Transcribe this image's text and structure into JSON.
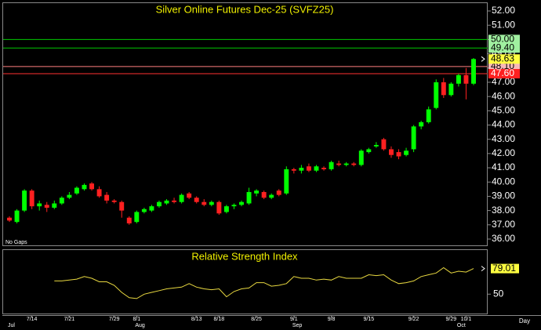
{
  "chart_data": [
    {
      "type": "candlestick",
      "title": "Silver Online Futures Dec-25 (SVFZ25)",
      "note": "No Gaps",
      "x_label": "Day",
      "categories": [
        null,
        null,
        null,
        "7/14",
        null,
        null,
        null,
        null,
        "7/21",
        null,
        null,
        null,
        null,
        null,
        "7/29",
        null,
        null,
        "8/1",
        null,
        null,
        null,
        null,
        null,
        null,
        null,
        "8/13",
        null,
        null,
        "8/18",
        null,
        null,
        null,
        null,
        "8/25",
        null,
        null,
        null,
        null,
        "9/1",
        null,
        null,
        null,
        null,
        "9/8",
        null,
        null,
        null,
        null,
        "9/15",
        null,
        null,
        null,
        null,
        null,
        "9/22",
        null,
        null,
        null,
        null,
        "9/29",
        null,
        "10/1",
        null,
        null
      ],
      "months": [
        "Jul",
        null,
        null,
        null,
        null,
        null,
        null,
        null,
        null,
        null,
        null,
        null,
        null,
        null,
        null,
        null,
        null,
        "Aug",
        null,
        null,
        null,
        null,
        null,
        null,
        null,
        null,
        null,
        null,
        null,
        null,
        null,
        null,
        null,
        null,
        null,
        null,
        null,
        null,
        "Sep",
        null,
        null,
        null,
        null,
        null,
        null,
        null,
        null,
        null,
        null,
        null,
        null,
        null,
        null,
        null,
        null,
        null,
        null,
        null,
        null,
        null,
        "Oct",
        null,
        null
      ],
      "open": [
        37.5,
        37.2,
        38.0,
        39.4,
        38.3,
        38.4,
        38.2,
        38.5,
        38.9,
        39.2,
        39.5,
        39.9,
        39.5,
        39.1,
        38.7,
        38.6,
        37.5,
        37.2,
        37.9,
        38.0,
        38.3,
        38.5,
        38.7,
        38.6,
        39.2,
        38.9,
        38.6,
        38.4,
        38.6,
        37.9,
        38.3,
        38.4,
        38.5,
        39.2,
        39.3,
        38.9,
        39.4,
        39.2,
        40.9,
        40.8,
        41.1,
        40.8,
        41.0,
        40.9,
        41.3,
        41.2,
        41.3,
        41.2,
        42.1,
        42.5,
        43.0,
        42.3,
        42.1,
        41.9,
        42.3,
        43.9,
        44.2,
        45.2,
        47.0,
        46.1,
        46.9,
        47.5,
        46.9
      ],
      "high": [
        37.6,
        38.1,
        39.5,
        39.5,
        38.7,
        38.6,
        38.7,
        39.0,
        39.3,
        39.7,
        39.9,
        40.0,
        39.7,
        39.3,
        38.8,
        38.7,
        37.6,
        38.0,
        38.2,
        38.4,
        38.7,
        38.8,
        38.9,
        39.2,
        39.3,
        39.0,
        38.8,
        38.7,
        38.7,
        38.4,
        38.5,
        38.7,
        39.6,
        39.5,
        39.4,
        39.2,
        39.5,
        41.1,
        41.0,
        41.2,
        41.3,
        41.2,
        41.1,
        41.5,
        41.5,
        41.4,
        41.4,
        42.3,
        42.4,
        42.8,
        43.1,
        42.5,
        42.3,
        42.4,
        44.0,
        44.3,
        45.3,
        47.2,
        47.3,
        47.0,
        47.6,
        48.0,
        48.7
      ],
      "low": [
        37.2,
        37.1,
        37.9,
        38.1,
        38.0,
        37.9,
        38.1,
        38.4,
        38.8,
        39.1,
        39.4,
        39.4,
        38.9,
        38.5,
        38.5,
        37.5,
        37.0,
        37.1,
        37.8,
        37.9,
        38.2,
        38.4,
        38.5,
        38.5,
        38.8,
        38.5,
        38.3,
        38.3,
        37.7,
        37.8,
        38.1,
        38.3,
        38.4,
        39.0,
        38.8,
        38.8,
        39.0,
        39.1,
        40.6,
        40.6,
        40.7,
        40.7,
        40.8,
        40.8,
        41.1,
        41.1,
        41.1,
        41.1,
        42.0,
        42.4,
        42.2,
        41.7,
        41.6,
        41.8,
        42.1,
        43.7,
        44.1,
        45.1,
        45.9,
        46.0,
        46.7,
        45.8,
        46.8
      ],
      "close": [
        37.3,
        38.0,
        39.4,
        38.3,
        38.5,
        38.2,
        38.5,
        38.9,
        39.1,
        39.6,
        39.8,
        39.5,
        39.0,
        38.7,
        38.6,
        38.0,
        37.1,
        37.9,
        38.1,
        38.3,
        38.6,
        38.7,
        38.6,
        39.1,
        38.9,
        38.6,
        38.4,
        38.6,
        37.8,
        38.3,
        38.4,
        38.6,
        39.3,
        39.4,
        38.9,
        39.1,
        39.1,
        40.9,
        40.8,
        41.0,
        40.8,
        41.1,
        40.9,
        41.4,
        41.2,
        41.3,
        41.2,
        42.2,
        42.3,
        42.6,
        42.3,
        41.9,
        41.8,
        42.2,
        43.9,
        44.2,
        45.1,
        47.0,
        46.1,
        46.9,
        47.5,
        46.9,
        48.63
      ],
      "up_color": "#00ff00",
      "down_color": "#ff2020",
      "ylim": [
        35.56,
        52.55
      ],
      "yticks": [
        {
          "value": 36,
          "label": "36.00"
        },
        {
          "value": 37,
          "label": "37.00"
        },
        {
          "value": 38,
          "label": "38.00"
        },
        {
          "value": 39,
          "label": "39.00"
        },
        {
          "value": 40,
          "label": "40.00"
        },
        {
          "value": 41,
          "label": "41.00"
        },
        {
          "value": 42,
          "label": "42.00"
        },
        {
          "value": 43,
          "label": "43.00"
        },
        {
          "value": 44,
          "label": "44.00"
        },
        {
          "value": 45,
          "label": "45.00"
        },
        {
          "value": 46,
          "label": "46.00"
        },
        {
          "value": 47,
          "label": "47.00"
        },
        {
          "value": 48,
          "label": "48.00"
        },
        {
          "value": 49,
          "label": "49.00"
        },
        {
          "value": 50,
          "label": "50.00"
        },
        {
          "value": 51,
          "label": "51.00"
        },
        {
          "value": 52,
          "label": "52.00"
        }
      ],
      "levels": [
        {
          "value": 50,
          "label": "50.00",
          "color": "#00c800",
          "bg": "#a0f0a0",
          "text_color": "#000"
        },
        {
          "value": 49.4,
          "label": "49.40",
          "color": "#00c800",
          "bg": "#a0f0a0",
          "text_color": "#000"
        },
        {
          "value": 48.1,
          "label": "48.10",
          "color": "#ff8080",
          "bg": "#f8b8b8",
          "text_color": "#000"
        },
        {
          "value": 47.6,
          "label": "47.60",
          "color": "#ff3030",
          "bg": "#ff2020",
          "text_color": "#fff"
        }
      ],
      "last_bg": "#ffff40"
    },
    {
      "type": "line",
      "title": "Relative Strength Index",
      "values": [
        null,
        null,
        null,
        null,
        null,
        null,
        65,
        65,
        66,
        67,
        70,
        68,
        64,
        64,
        60,
        52,
        46,
        45,
        50,
        52,
        54,
        56,
        57,
        58,
        62,
        58,
        56,
        55,
        56,
        47,
        53,
        56,
        57,
        63,
        63,
        59,
        60,
        62,
        70,
        68,
        68,
        66,
        67,
        66,
        70,
        68,
        68,
        68,
        72,
        71,
        72,
        66,
        62,
        63,
        65,
        70,
        72,
        74,
        80,
        74,
        76,
        75,
        79.01
      ],
      "color": "#e8d840",
      "ylim": [
        28,
        100
      ],
      "yticks": [
        50
      ],
      "last_bg": "#ffff40"
    }
  ]
}
